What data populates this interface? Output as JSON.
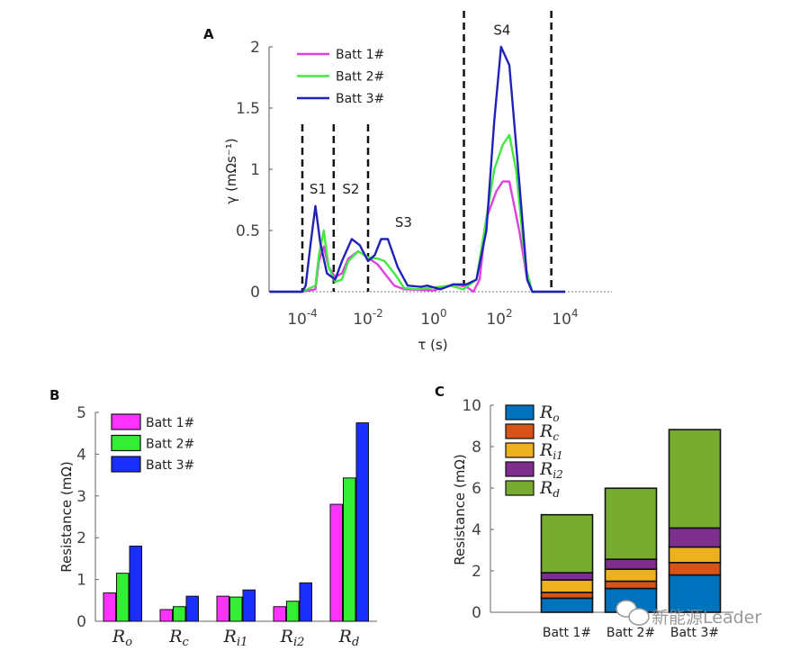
{
  "chart_data": [
    {
      "panel": "A",
      "type": "line",
      "xlabel": "τ (s)",
      "ylabel": "γ (mΩs⁻¹)",
      "xscale": "log",
      "xlim": [
        1e-05,
        300000.0
      ],
      "ylim": [
        0,
        2
      ],
      "xticks": [
        {
          "base": "10",
          "exp": "-4",
          "value": 0.0001
        },
        {
          "base": "10",
          "exp": "-2",
          "value": 0.01
        },
        {
          "base": "10",
          "exp": "0",
          "value": 1
        },
        {
          "base": "10",
          "exp": "2",
          "value": 100
        },
        {
          "base": "10",
          "exp": "4",
          "value": 10000.0
        }
      ],
      "yticks": [
        "0",
        "0.5",
        "1",
        "1.5",
        "2"
      ],
      "legend_placement": "top-left",
      "dashed_lines_tau": [
        0.0001,
        0.0009,
        0.01,
        8.3,
        3800
      ],
      "region_labels": [
        {
          "text": "S1",
          "tau": 0.0003,
          "gamma": 0.8
        },
        {
          "text": "S2",
          "tau": 0.003,
          "gamma": 0.8
        },
        {
          "text": "S3",
          "tau": 0.12,
          "gamma": 0.53
        },
        {
          "text": "S4",
          "tau": 120,
          "gamma": 2.1
        }
      ],
      "series": [
        {
          "name": "Batt 1#",
          "color": "#e040e0",
          "x": [
            1e-05,
            0.0001,
            0.00025,
            0.00032,
            0.00045,
            0.00063,
            0.001,
            0.0016,
            0.0025,
            0.005,
            0.01,
            0.02,
            0.032,
            0.063,
            0.126,
            1,
            4,
            10,
            16,
            25,
            40,
            80,
            126,
            200,
            400,
            700,
            1000,
            10000.0
          ],
          "y": [
            0,
            0,
            0.02,
            0.25,
            0.37,
            0.2,
            0.12,
            0.15,
            0.27,
            0.33,
            0.28,
            0.22,
            0.15,
            0.05,
            0.02,
            0.01,
            0.06,
            0.04,
            0.0,
            0.1,
            0.6,
            0.82,
            0.9,
            0.9,
            0.5,
            0.1,
            0,
            0
          ]
        },
        {
          "name": "Batt 2#",
          "color": "#44e844",
          "x": [
            1e-05,
            0.0001,
            0.00025,
            0.00032,
            0.00045,
            0.00063,
            0.001,
            0.0016,
            0.0025,
            0.005,
            0.01,
            0.02,
            0.032,
            0.063,
            0.126,
            0.32,
            3.2,
            8,
            20,
            40,
            70,
            126,
            200,
            320,
            630,
            1000,
            10000.0
          ],
          "y": [
            0,
            0,
            0.05,
            0.3,
            0.5,
            0.2,
            0.08,
            0.1,
            0.25,
            0.33,
            0.28,
            0.27,
            0.25,
            0.15,
            0.03,
            0.02,
            0.05,
            0.02,
            0.1,
            0.6,
            1.0,
            1.2,
            1.28,
            1.0,
            0.2,
            0,
            0
          ]
        },
        {
          "name": "Batt 3#",
          "color": "#2222b8",
          "x": [
            1e-05,
            0.0001,
            0.000126,
            0.00018,
            0.00025,
            0.00035,
            0.00056,
            0.001,
            0.0016,
            0.0032,
            0.0056,
            0.01,
            0.016,
            0.025,
            0.04,
            0.08,
            0.16,
            0.4,
            0.63,
            1.6,
            4,
            10,
            20,
            40,
            70,
            112,
            200,
            400,
            700,
            1000,
            10000.0
          ],
          "y": [
            0,
            0,
            0.05,
            0.4,
            0.7,
            0.4,
            0.15,
            0.1,
            0.25,
            0.43,
            0.38,
            0.25,
            0.3,
            0.43,
            0.43,
            0.2,
            0.05,
            0.04,
            0.05,
            0.02,
            0.06,
            0.06,
            0.1,
            0.5,
            1.4,
            2.0,
            1.85,
            0.9,
            0.1,
            0,
            0
          ]
        }
      ]
    },
    {
      "panel": "B",
      "type": "bar",
      "ylabel": "Resistance (mΩ)",
      "ylim": [
        0,
        5
      ],
      "yticks": [
        "0",
        "1",
        "2",
        "3",
        "4",
        "5"
      ],
      "legend_placement": "top-left",
      "categories": [
        {
          "main": "R",
          "sub": "o"
        },
        {
          "main": "R",
          "sub": "c"
        },
        {
          "main": "R",
          "sub": "i1"
        },
        {
          "main": "R",
          "sub": "i2"
        },
        {
          "main": "R",
          "sub": "d"
        }
      ],
      "series": [
        {
          "name": "Batt 1#",
          "color": "#ff33ff",
          "values": [
            0.68,
            0.28,
            0.6,
            0.35,
            2.8
          ]
        },
        {
          "name": "Batt 2#",
          "color": "#33ee33",
          "values": [
            1.15,
            0.35,
            0.58,
            0.48,
            3.43
          ]
        },
        {
          "name": "Batt 3#",
          "color": "#1a2eff",
          "values": [
            1.8,
            0.6,
            0.75,
            0.92,
            4.75
          ]
        }
      ]
    },
    {
      "panel": "C",
      "type": "bar",
      "stacked": true,
      "ylabel": "Resistance (mΩ)",
      "ylim": [
        0,
        10
      ],
      "yticks": [
        "0",
        "2",
        "4",
        "6",
        "8",
        "10"
      ],
      "legend_placement": "top-left",
      "categories": [
        "Batt 1#",
        "Batt 2#",
        "Batt 3#"
      ],
      "series": [
        {
          "name": {
            "main": "R",
            "sub": "o"
          },
          "color": "#0072bd",
          "values": [
            0.68,
            1.15,
            1.8
          ]
        },
        {
          "name": {
            "main": "R",
            "sub": "c"
          },
          "color": "#d95319",
          "values": [
            0.28,
            0.35,
            0.6
          ]
        },
        {
          "name": {
            "main": "R",
            "sub": "i1"
          },
          "color": "#edb120",
          "values": [
            0.6,
            0.58,
            0.75
          ]
        },
        {
          "name": {
            "main": "R",
            "sub": "i2"
          },
          "color": "#7e2f8e",
          "values": [
            0.35,
            0.48,
            0.92
          ]
        },
        {
          "name": {
            "main": "R",
            "sub": "d"
          },
          "color": "#77ac30",
          "values": [
            2.8,
            3.43,
            4.75
          ]
        }
      ]
    }
  ],
  "watermark": {
    "text": "新能源Leader",
    "icon": "wechat-icon"
  }
}
